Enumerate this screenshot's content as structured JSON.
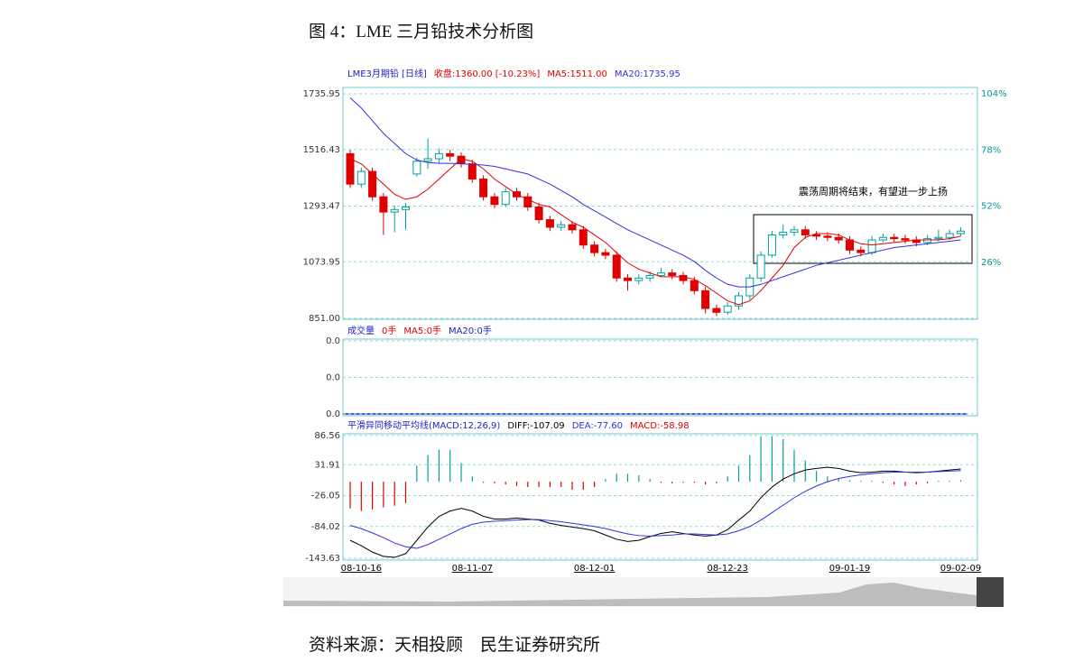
{
  "caption": "图 4：LME 三月铅技术分析图",
  "source": "资料来源：天相投顾　民生证券研究所",
  "chart_data": [
    {
      "type": "candlestick",
      "title": "LME3月期铅 [日线]",
      "subtitle": "收盘:1360.00 [-10.23%]",
      "annotation": "震荡周期将结束，有望进一步上扬",
      "title_color": "#2020c0",
      "subtitle_color": "#e00000",
      "up_color": "#00a0a0",
      "down_color": "#e00000",
      "grid": true,
      "open": [
        1500,
        1380,
        1430,
        1330,
        1270,
        1280,
        1420,
        1470,
        1480,
        1500,
        1490,
        1460,
        1400,
        1330,
        1300,
        1350,
        1330,
        1290,
        1240,
        1210,
        1220,
        1200,
        1140,
        1110,
        1100,
        1010,
        1000,
        1010,
        1020,
        1030,
        1020,
        1000,
        960,
        890,
        875,
        900,
        940,
        1010,
        1100,
        1180,
        1190,
        1200,
        1180,
        1175,
        1170,
        1160,
        1120,
        1110,
        1160,
        1170,
        1165,
        1160,
        1150,
        1165,
        1170,
        1185
      ],
      "high": [
        1515,
        1445,
        1445,
        1345,
        1295,
        1305,
        1485,
        1560,
        1520,
        1515,
        1505,
        1475,
        1415,
        1345,
        1365,
        1365,
        1345,
        1305,
        1255,
        1235,
        1235,
        1215,
        1155,
        1125,
        1115,
        1025,
        1025,
        1035,
        1050,
        1045,
        1035,
        1015,
        975,
        905,
        915,
        955,
        1025,
        1115,
        1195,
        1220,
        1215,
        1215,
        1195,
        1190,
        1185,
        1175,
        1135,
        1175,
        1185,
        1185,
        1180,
        1175,
        1180,
        1200,
        1200,
        1210
      ],
      "low": [
        1365,
        1365,
        1315,
        1180,
        1190,
        1200,
        1410,
        1440,
        1460,
        1470,
        1445,
        1385,
        1315,
        1285,
        1290,
        1315,
        1275,
        1225,
        1195,
        1195,
        1185,
        1125,
        1095,
        1085,
        995,
        960,
        985,
        995,
        1015,
        1005,
        985,
        945,
        870,
        860,
        865,
        885,
        925,
        995,
        1090,
        1165,
        1175,
        1165,
        1160,
        1155,
        1145,
        1105,
        1095,
        1100,
        1150,
        1150,
        1145,
        1135,
        1140,
        1155,
        1160,
        1175
      ],
      "close": [
        1380,
        1430,
        1330,
        1270,
        1280,
        1290,
        1470,
        1480,
        1500,
        1490,
        1460,
        1400,
        1330,
        1300,
        1350,
        1330,
        1290,
        1240,
        1210,
        1220,
        1200,
        1140,
        1110,
        1100,
        1010,
        1000,
        1010,
        1020,
        1030,
        1020,
        1000,
        960,
        890,
        875,
        900,
        940,
        1010,
        1100,
        1180,
        1190,
        1200,
        1180,
        1175,
        1170,
        1160,
        1120,
        1110,
        1160,
        1170,
        1165,
        1160,
        1150,
        1165,
        1170,
        1185,
        1195
      ],
      "series": [
        {
          "name": "MA5:1511.00",
          "color": "#e00000",
          "values": [
            1480,
            1460,
            1420,
            1380,
            1340,
            1320,
            1330,
            1360,
            1400,
            1440,
            1480,
            1470,
            1440,
            1400,
            1370,
            1340,
            1320,
            1300,
            1290,
            1260,
            1230,
            1210,
            1180,
            1150,
            1110,
            1070,
            1045,
            1030,
            1015,
            1015,
            1015,
            1005,
            980,
            950,
            920,
            905,
            920,
            960,
            1010,
            1060,
            1130,
            1170,
            1185,
            1185,
            1180,
            1160,
            1145,
            1140,
            1145,
            1150,
            1155,
            1160,
            1160,
            1160,
            1165,
            1175
          ]
        },
        {
          "name": "MA20:1735.95",
          "color": "#3030e0",
          "values": [
            1720,
            1680,
            1630,
            1580,
            1540,
            1500,
            1475,
            1465,
            1462,
            1462,
            1460,
            1458,
            1455,
            1450,
            1440,
            1430,
            1420,
            1400,
            1380,
            1355,
            1330,
            1300,
            1275,
            1250,
            1225,
            1200,
            1180,
            1160,
            1140,
            1120,
            1100,
            1075,
            1040,
            1010,
            985,
            975,
            975,
            985,
            1000,
            1015,
            1030,
            1045,
            1060,
            1070,
            1080,
            1090,
            1100,
            1110,
            1120,
            1130,
            1135,
            1140,
            1145,
            1150,
            1155,
            1160
          ]
        }
      ],
      "ylim": [
        851,
        1735.95
      ],
      "yticks": [
        1735.95,
        1516.43,
        1293.47,
        1073.95,
        {
          "value": 851,
          "label": "851.00"
        }
      ],
      "y2lim": [
        0,
        104
      ],
      "y2ticks": [
        {
          "value": 104,
          "label": "104%"
        },
        {
          "value": 78,
          "label": "78%"
        },
        {
          "value": 52,
          "label": "52%"
        },
        {
          "value": 26,
          "label": "26%"
        }
      ]
    },
    {
      "type": "volume",
      "title": "成交量",
      "title_color": "#2020c0",
      "grid": true,
      "legend": [
        {
          "text": "0手",
          "color": "#e00000"
        },
        {
          "text": "MA5:0手",
          "color": "#e00000"
        },
        {
          "text": "MA20:0手",
          "color": "#2020c0"
        }
      ],
      "ylim": [
        0,
        0.04
      ],
      "yticks": [
        {
          "value": 0.04,
          "label": "0.0"
        },
        {
          "value": 0.02,
          "label": "0.0"
        },
        {
          "value": 0,
          "label": "0.0"
        }
      ]
    },
    {
      "type": "macd",
      "title": "平滑异同移动平均线(MACD:12,26,9)",
      "title_color": "#2020c0",
      "up_color": "#00a0a0",
      "grid": true,
      "categories": [
        null,
        "08-10-16",
        null,
        null,
        null,
        null,
        null,
        null,
        null,
        null,
        null,
        "08-11-07",
        null,
        null,
        null,
        null,
        null,
        null,
        null,
        null,
        null,
        null,
        "08-12-01",
        null,
        null,
        null,
        null,
        null,
        null,
        null,
        null,
        null,
        null,
        null,
        "08-12-23",
        null,
        null,
        null,
        null,
        null,
        null,
        null,
        null,
        null,
        null,
        "09-01-19",
        null,
        null,
        null,
        null,
        null,
        null,
        null,
        null,
        null,
        "09-02-09"
      ],
      "series": [
        {
          "name": "DIFF:-107.09",
          "color": "#000000",
          "values": [
            -110,
            -120,
            -132,
            -140,
            -142,
            -135,
            -110,
            -85,
            -65,
            -55,
            -50,
            -55,
            -65,
            -70,
            -70,
            -68,
            -70,
            -72,
            -78,
            -82,
            -85,
            -88,
            -92,
            -100,
            -108,
            -112,
            -110,
            -103,
            -97,
            -94,
            -97,
            -100,
            -102,
            -100,
            -90,
            -72,
            -55,
            -30,
            -10,
            5,
            15,
            22,
            25,
            27,
            25,
            20,
            17,
            18,
            20,
            20,
            18,
            17,
            18,
            20,
            22,
            24
          ]
        },
        {
          "name": "DEA:-77.60",
          "color": "#3030e0",
          "values": [
            -82,
            -88,
            -96,
            -105,
            -115,
            -122,
            -125,
            -118,
            -108,
            -98,
            -88,
            -80,
            -76,
            -74,
            -73,
            -72,
            -71,
            -71,
            -73,
            -75,
            -78,
            -81,
            -84,
            -88,
            -93,
            -98,
            -101,
            -102,
            -101,
            -100,
            -98,
            -98,
            -99,
            -100,
            -98,
            -92,
            -84,
            -72,
            -58,
            -44,
            -30,
            -18,
            -8,
            0,
            6,
            10,
            13,
            15,
            17,
            18,
            18,
            18,
            18,
            19,
            20,
            21
          ]
        },
        {
          "name": "MACD:-58.98",
          "color": "#e00000",
          "values": [
            -50,
            -55,
            -52,
            -48,
            -45,
            -40,
            30,
            50,
            60,
            60,
            35,
            10,
            -2,
            -3,
            -5,
            -8,
            -10,
            -10,
            -10,
            -10,
            -15,
            -15,
            -10,
            5,
            15,
            15,
            12,
            5,
            -2,
            -3,
            -2,
            -2,
            -5,
            -3,
            10,
            30,
            50,
            85,
            85,
            80,
            60,
            40,
            20,
            10,
            5,
            3,
            2,
            2,
            -2,
            -5,
            -8,
            -5,
            -3,
            2,
            2,
            3
          ]
        }
      ],
      "ylim": [
        -143.63,
        86.56
      ],
      "yticks": [
        86.56,
        31.91,
        -26.05,
        -84.02,
        -143.63
      ]
    }
  ]
}
